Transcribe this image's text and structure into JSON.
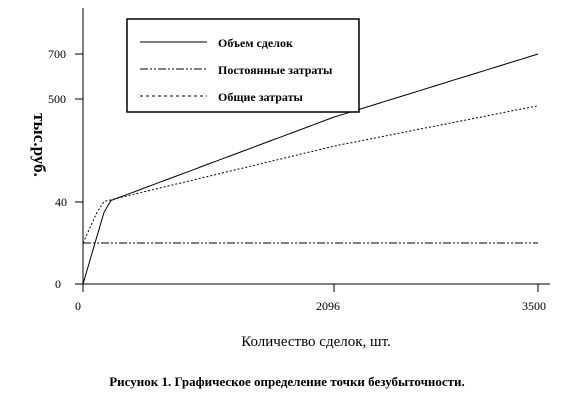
{
  "chart_data": {
    "type": "line",
    "ylabel": "тыс.руб.",
    "xlabel": "Количество сделок, шт.",
    "caption": "Рисунок 1. Графическое определение точки безубыточности.",
    "x_ticks": [
      "0",
      "2096",
      "3500"
    ],
    "y_ticks": [
      "0",
      "40",
      "500",
      "700"
    ],
    "legend_position": "top-center",
    "series": [
      {
        "name": "Объем сделок",
        "style": "solid",
        "x": [
          0,
          3500
        ],
        "y": [
          0,
          700
        ]
      },
      {
        "name": "Постоянные затраты",
        "style": "dash-dot",
        "x": [
          0,
          3500
        ],
        "y": [
          20,
          20
        ]
      },
      {
        "name": "Общие затраты",
        "style": "dotted",
        "x": [
          0,
          3500
        ],
        "y": [
          20,
          470
        ]
      }
    ]
  }
}
